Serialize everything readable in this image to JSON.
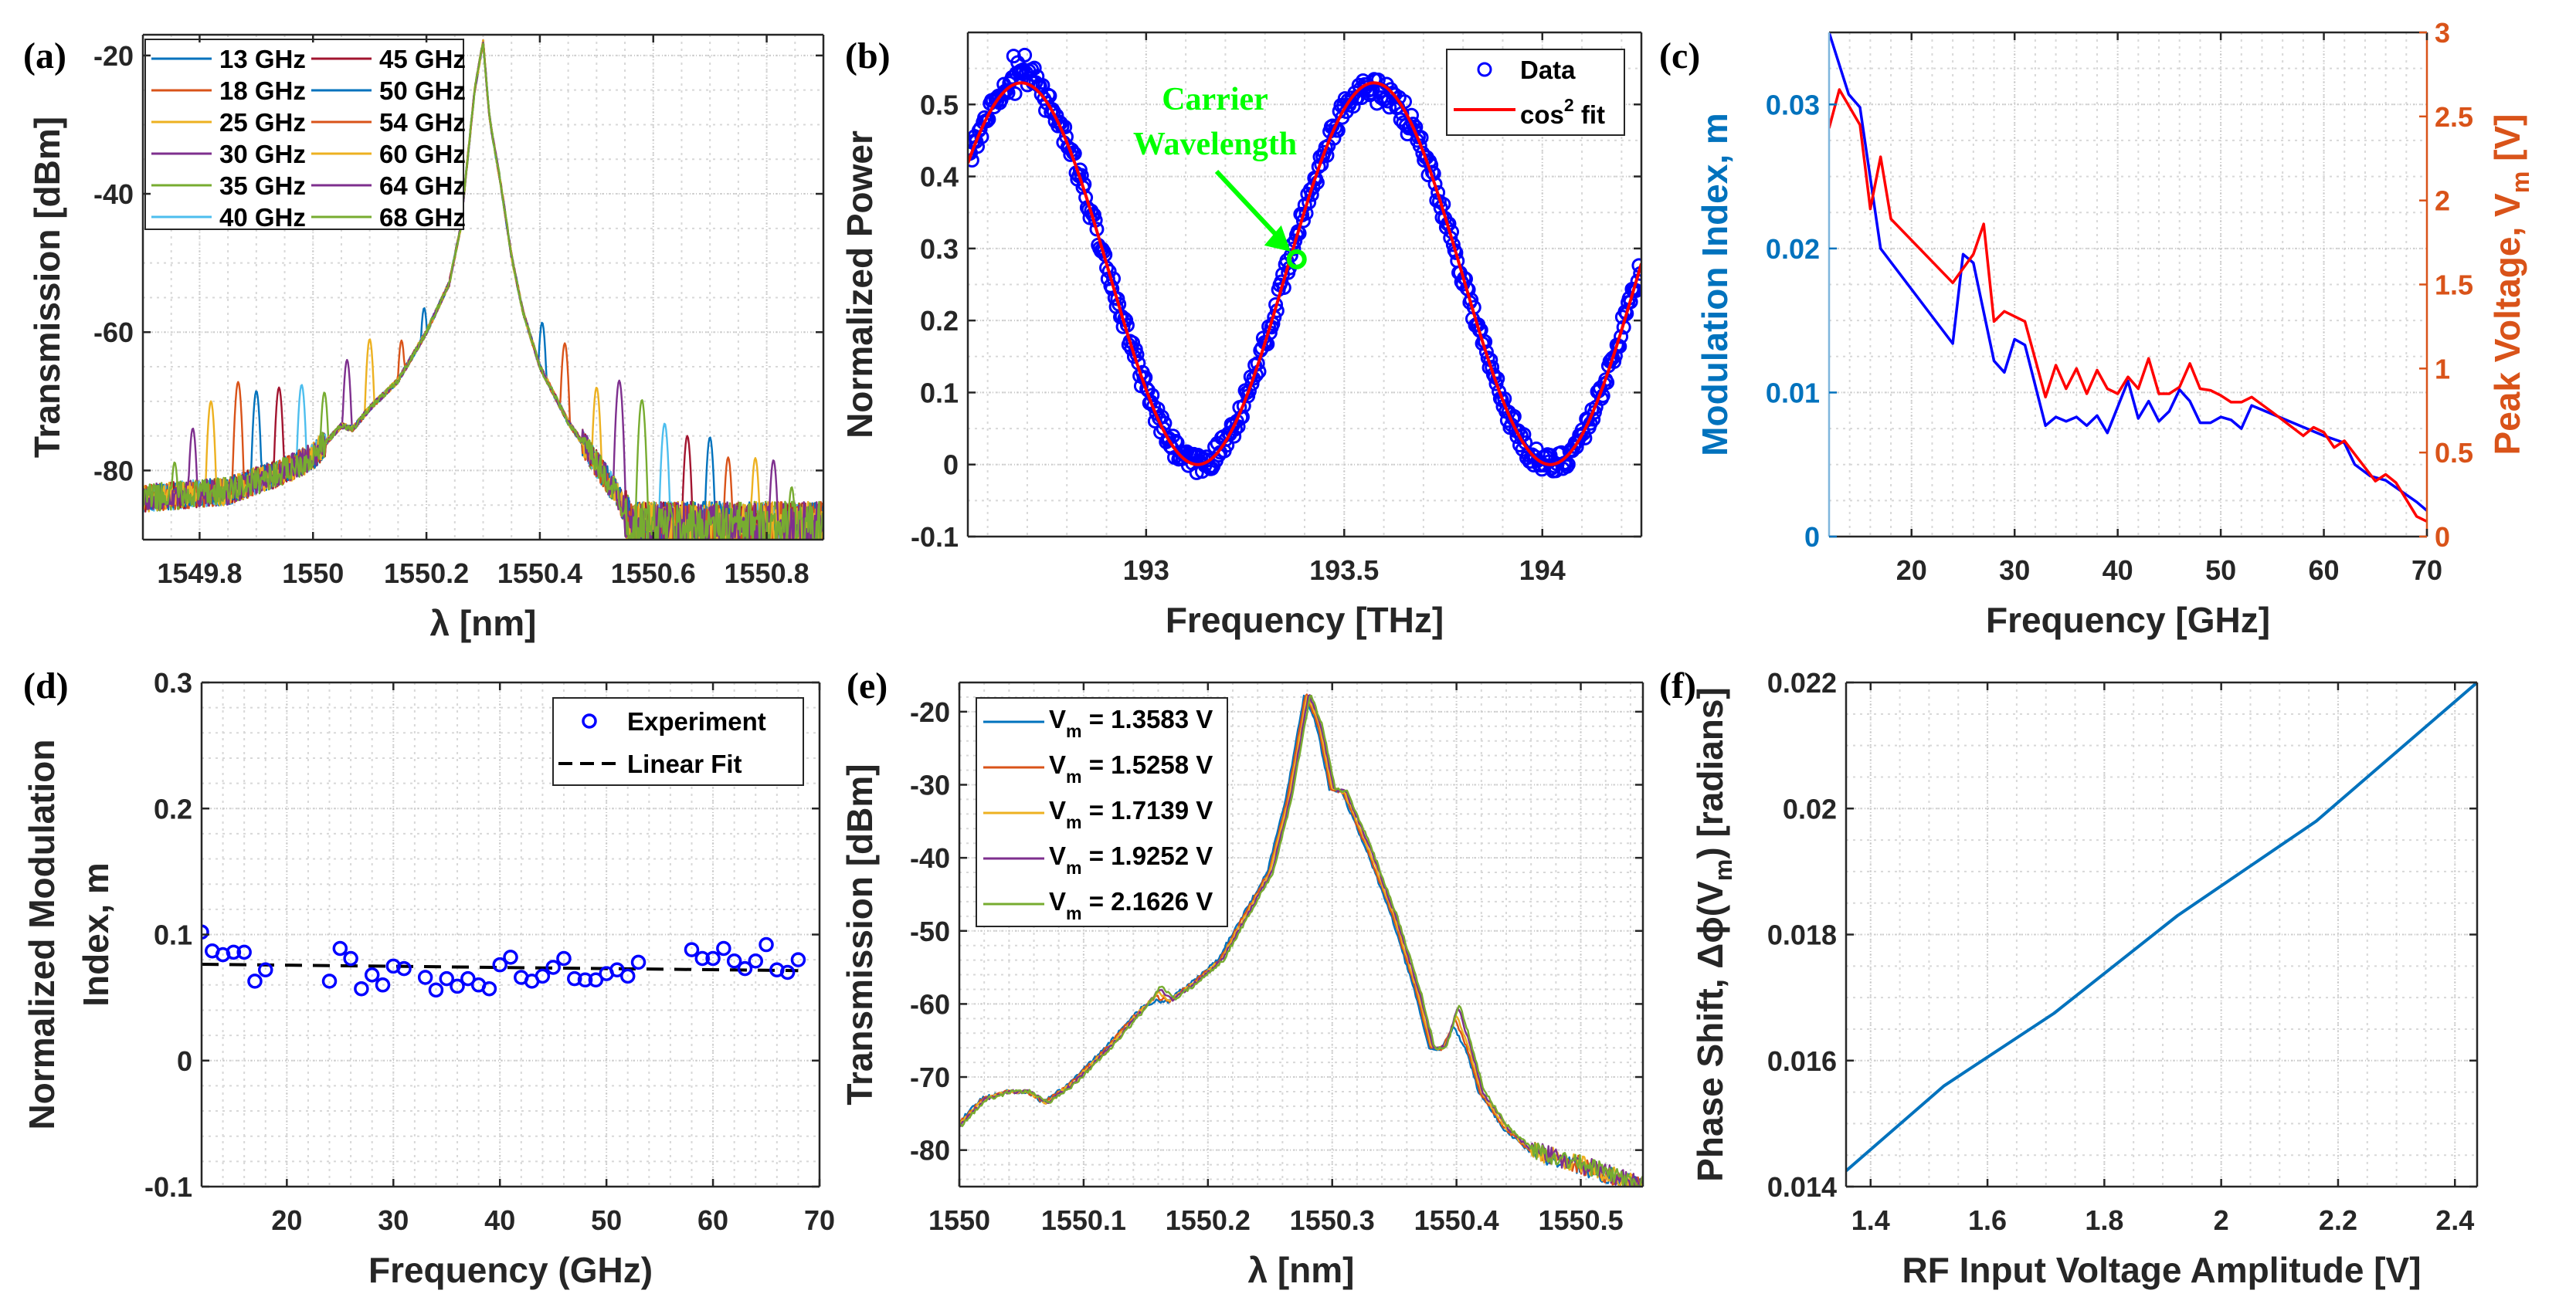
{
  "chart_data": [
    {
      "panel_label": "(a)",
      "type": "line",
      "title": "",
      "xlabel": "λ [nm]",
      "ylabel_lines": [
        [
          {
            "text": "Transmission [dBm]"
          }
        ]
      ],
      "xlim": [
        1549.7,
        1550.9
      ],
      "ylim": [
        -90,
        -17
      ],
      "xticks": [
        1549.8,
        1550,
        1550.2,
        1550.4,
        1550.6,
        1550.8
      ],
      "xtick_labels": [
        "1549.8",
        "1550",
        "1550.2",
        "1550.4",
        "1550.6",
        "1550.8"
      ],
      "yticks": [
        -80,
        -60,
        -40,
        -20
      ],
      "ytick_labels": [
        "-80",
        "-60",
        "-40",
        "-20"
      ],
      "grid": true,
      "legend_location": "top-left",
      "carrier_nm": 1550.3,
      "sideband_spacing_nm_per_GHz": 0.008,
      "envelope": {
        "x": [
          1549.7,
          1549.85,
          1549.95,
          1550.0,
          1550.05,
          1550.07,
          1550.1,
          1550.15,
          1550.2,
          1550.24,
          1550.26,
          1550.285,
          1550.3,
          1550.31,
          1550.315,
          1550.33,
          1550.35,
          1550.37,
          1550.4,
          1550.45,
          1550.5,
          1550.54,
          1550.56,
          1550.9
        ],
        "y": [
          -84,
          -83,
          -80,
          -78,
          -73.5,
          -74,
          -71,
          -67,
          -60,
          -53,
          -45,
          -25,
          -18,
          -28,
          -31,
          -38,
          -49,
          -57,
          -65,
          -73,
          -79,
          -84,
          -88,
          -88
        ]
      },
      "series": [
        {
          "name": "13 GHz",
          "color": "#0072BD",
          "freq_GHz": 13,
          "left_sideband_dBm": -56.5,
          "right_sideband_dBm": -58.6
        },
        {
          "name": "18 GHz",
          "color": "#D95319",
          "freq_GHz": 18,
          "left_sideband_dBm": -61.2,
          "right_sideband_dBm": -61.6
        },
        {
          "name": "25 GHz",
          "color": "#EDB120",
          "freq_GHz": 25,
          "left_sideband_dBm": -61.0,
          "right_sideband_dBm": -68.0
        },
        {
          "name": "30 GHz",
          "color": "#7E2F8E",
          "freq_GHz": 30,
          "left_sideband_dBm": -64.0,
          "right_sideband_dBm": -67.0
        },
        {
          "name": "35 GHz",
          "color": "#77AC30",
          "freq_GHz": 35,
          "left_sideband_dBm": -68.7,
          "right_sideband_dBm": -69.8
        },
        {
          "name": "40 GHz",
          "color": "#4DBEEE",
          "freq_GHz": 40,
          "left_sideband_dBm": -67.6,
          "right_sideband_dBm": -73.2
        },
        {
          "name": "45 GHz",
          "color": "#A2142F",
          "freq_GHz": 45,
          "left_sideband_dBm": -68.0,
          "right_sideband_dBm": -75.0
        },
        {
          "name": "50 GHz",
          "color": "#0072BD",
          "freq_GHz": 50,
          "left_sideband_dBm": -68.5,
          "right_sideband_dBm": -75.2
        },
        {
          "name": "54 GHz",
          "color": "#D95319",
          "freq_GHz": 54,
          "left_sideband_dBm": -67.2,
          "right_sideband_dBm": -78.1
        },
        {
          "name": "60 GHz",
          "color": "#EDB120",
          "freq_GHz": 60,
          "left_sideband_dBm": -70.0,
          "right_sideband_dBm": -78.2
        },
        {
          "name": "64 GHz",
          "color": "#7E2F8E",
          "freq_GHz": 64,
          "left_sideband_dBm": -73.9,
          "right_sideband_dBm": -78.5
        },
        {
          "name": "68 GHz",
          "color": "#77AC30",
          "freq_GHz": 68,
          "left_sideband_dBm": -78.8,
          "right_sideband_dBm": -82.4
        }
      ]
    },
    {
      "panel_label": "(b)",
      "type": "scatter",
      "title": "",
      "xlabel": "Frequency [THz]",
      "ylabel_lines": [
        [
          {
            "text": "Normalized Power"
          }
        ]
      ],
      "xlim": [
        192.55,
        194.25
      ],
      "ylim": [
        -0.1,
        0.6
      ],
      "xticks": [
        193,
        193.5,
        194
      ],
      "xtick_labels": [
        "193",
        "193.5",
        "194"
      ],
      "yticks": [
        -0.1,
        0,
        0.1,
        0.2,
        0.3,
        0.4,
        0.5
      ],
      "ytick_labels": [
        "-0.1",
        "0",
        "0.1",
        "0.2",
        "0.3",
        "0.4",
        "0.5"
      ],
      "grid": true,
      "legend_location": "top-right",
      "series": [
        {
          "name_segments": [
            {
              "text": "Data"
            }
          ],
          "type": "scatter",
          "color": "#0000FF"
        },
        {
          "name_segments": [
            {
              "text": "cos"
            },
            {
              "text": "2",
              "sup": true
            },
            {
              "text": " fit"
            }
          ],
          "type": "line",
          "color": "#FF0000"
        }
      ],
      "fit": {
        "amplitude": 0.53,
        "center_THz": 192.685,
        "period_THz": 0.89
      },
      "annotation": {
        "lines": [
          "Carrier",
          "Wavelength"
        ],
        "color": "#00FF00",
        "point": [
          193.38,
          0.285
        ]
      }
    },
    {
      "panel_label": "(c)",
      "type": "line",
      "title": "",
      "xlabel": "Frequency [GHz]",
      "ylabel_lines": [
        [
          {
            "text": "Modulation Index, m"
          }
        ]
      ],
      "ylabel_right": [
        {
          "text": "Peak Voltage, V"
        },
        {
          "text": "m",
          "sub": true
        },
        {
          "text": " [V]"
        }
      ],
      "left_axis_color": "#0072BD",
      "right_axis_color": "#D95319",
      "xlim": [
        12,
        70
      ],
      "ylim": [
        0,
        0.035
      ],
      "ylim_right": [
        0,
        3
      ],
      "xticks": [
        20,
        30,
        40,
        50,
        60,
        70
      ],
      "xtick_labels": [
        "20",
        "30",
        "40",
        "50",
        "60",
        "70"
      ],
      "yticks": [
        0,
        0.01,
        0.02,
        0.03
      ],
      "ytick_labels": [
        "0",
        "0.01",
        "0.02",
        "0.03"
      ],
      "yticks_right": [
        0,
        0.5,
        1,
        1.5,
        2,
        2.5,
        3
      ],
      "ytick_labels_right": [
        "0",
        "0.5",
        "1",
        "1.5",
        "2",
        "2.5",
        "3"
      ],
      "grid": true,
      "series": [
        {
          "name": "Modulation Index, m",
          "axis": "left",
          "color": "#0000FF",
          "x": [
            12,
            13.9,
            15,
            17,
            24,
            25,
            26,
            28,
            29,
            30,
            31,
            33,
            34,
            35,
            36,
            37,
            38,
            39,
            41,
            42,
            43,
            44,
            45,
            46,
            47,
            48,
            49,
            50,
            51,
            52,
            53,
            58,
            60,
            62,
            63,
            64.5,
            66,
            69,
            70
          ],
          "y": [
            0.035,
            0.0307,
            0.0298,
            0.02,
            0.0134,
            0.0196,
            0.019,
            0.0122,
            0.0114,
            0.0137,
            0.0133,
            0.0077,
            0.0083,
            0.008,
            0.0083,
            0.0077,
            0.0084,
            0.0072,
            0.0108,
            0.0082,
            0.0094,
            0.008,
            0.0087,
            0.0102,
            0.0094,
            0.0079,
            0.0079,
            0.0083,
            0.0081,
            0.0075,
            0.0091,
            0.0076,
            0.007,
            0.0065,
            0.005,
            0.0042,
            0.0039,
            0.0024,
            0.0018
          ]
        },
        {
          "name": "Peak Voltage, Vm",
          "axis": "right",
          "color": "#FF0000",
          "x": [
            12,
            13,
            15,
            16,
            17,
            18,
            24,
            26,
            27,
            28,
            29,
            31,
            33,
            34,
            35,
            36,
            37,
            38,
            39,
            40,
            41,
            42,
            43,
            44,
            45,
            46,
            47,
            48,
            49,
            50,
            51,
            52,
            53,
            55,
            58,
            59,
            60,
            61,
            62,
            65,
            66,
            67,
            69,
            70
          ],
          "y": [
            2.43,
            2.66,
            2.45,
            1.95,
            2.26,
            1.89,
            1.51,
            1.68,
            1.86,
            1.28,
            1.34,
            1.28,
            0.83,
            1.02,
            0.88,
            1.0,
            0.85,
            0.99,
            0.88,
            0.85,
            0.95,
            0.88,
            1.06,
            0.85,
            0.85,
            0.89,
            1.03,
            0.88,
            0.87,
            0.84,
            0.8,
            0.8,
            0.83,
            0.74,
            0.6,
            0.65,
            0.62,
            0.53,
            0.57,
            0.33,
            0.37,
            0.32,
            0.12,
            0.09
          ]
        }
      ]
    },
    {
      "panel_label": "(d)",
      "type": "scatter",
      "title": "",
      "xlabel": "Frequency (GHz)",
      "ylabel_lines": [
        [
          {
            "text": "Normalized Modulation"
          }
        ],
        [
          {
            "text": "Index, m"
          }
        ]
      ],
      "xlim": [
        12,
        70
      ],
      "ylim": [
        -0.1,
        0.3
      ],
      "xticks": [
        20,
        30,
        40,
        50,
        60,
        70
      ],
      "xtick_labels": [
        "20",
        "30",
        "40",
        "50",
        "60",
        "70"
      ],
      "yticks": [
        -0.1,
        0,
        0.1,
        0.2,
        0.3
      ],
      "ytick_labels": [
        "-0.1",
        "0",
        "0.1",
        "0.2",
        "0.3"
      ],
      "grid": true,
      "legend_location": "top-right",
      "series": [
        {
          "name": "Experiment",
          "type": "scatter",
          "color": "#0000FF",
          "x": [
            12,
            13,
            14,
            15,
            16,
            17,
            18,
            24,
            25,
            26,
            27,
            28,
            29,
            30,
            31,
            33,
            34,
            35,
            36,
            37,
            38,
            39,
            40,
            41,
            42,
            43,
            44,
            45,
            46,
            47,
            48,
            49,
            50,
            51,
            52,
            53,
            58,
            59,
            60,
            61,
            62,
            63,
            64,
            65,
            66,
            67,
            68
          ],
          "y": [
            0.102,
            0.087,
            0.084,
            0.086,
            0.086,
            0.063,
            0.072,
            0.063,
            0.089,
            0.081,
            0.057,
            0.068,
            0.06,
            0.075,
            0.073,
            0.066,
            0.056,
            0.065,
            0.059,
            0.065,
            0.06,
            0.057,
            0.076,
            0.082,
            0.066,
            0.063,
            0.067,
            0.074,
            0.081,
            0.065,
            0.064,
            0.064,
            0.069,
            0.072,
            0.067,
            0.078,
            0.088,
            0.081,
            0.081,
            0.089,
            0.079,
            0.073,
            0.079,
            0.092,
            0.072,
            0.07,
            0.08
          ]
        },
        {
          "name": "Linear Fit",
          "type": "line",
          "color": "#000000",
          "slope": -9e-05,
          "intercept": 0.0775
        }
      ]
    },
    {
      "panel_label": "(e)",
      "type": "line",
      "title": "",
      "xlabel": "λ [nm]",
      "ylabel_lines": [
        [
          {
            "text": "Transmission [dBm]"
          }
        ]
      ],
      "xlim": [
        1550,
        1550.55
      ],
      "ylim": [
        -85,
        -16
      ],
      "xticks": [
        1550,
        1550.1,
        1550.2,
        1550.3,
        1550.4,
        1550.5
      ],
      "xtick_labels": [
        "1550",
        "1550.1",
        "1550.2",
        "1550.3",
        "1550.4",
        "1550.5"
      ],
      "yticks": [
        -80,
        -70,
        -60,
        -50,
        -40,
        -30,
        -20
      ],
      "ytick_labels": [
        "-80",
        "-70",
        "-60",
        "-50",
        "-40",
        "-30",
        "-20"
      ],
      "grid": true,
      "legend_location": "top-left",
      "base_curve": {
        "x": [
          1550,
          1550.02,
          1550.04,
          1550.055,
          1550.07,
          1550.09,
          1550.12,
          1550.14,
          1550.16,
          1550.17,
          1550.19,
          1550.21,
          1550.23,
          1550.25,
          1550.265,
          1550.28,
          1550.29,
          1550.3,
          1550.31,
          1550.33,
          1550.35,
          1550.37,
          1550.38,
          1550.39,
          1550.4,
          1550.41,
          1550.42,
          1550.44,
          1550.46,
          1550.5,
          1550.55
        ],
        "y": [
          -76.5,
          -73,
          -72,
          -72,
          -73.5,
          -71,
          -66,
          -62,
          -58.5,
          -59.5,
          -57,
          -54,
          -48,
          -42,
          -32,
          -17.5,
          -22,
          -30.5,
          -31,
          -39,
          -48,
          -59,
          -66,
          -66,
          -61.5,
          -66,
          -72,
          -77,
          -80,
          -82,
          -85
        ]
      },
      "series": [
        {
          "name_segments": [
            {
              "text": "V"
            },
            {
              "text": "m",
              "sub": true
            },
            {
              "text": " = 1.3583 V"
            }
          ],
          "color": "#0072BD",
          "shoulder_peak_dBm": -59.5,
          "sideband_peak_dBm": -63.0
        },
        {
          "name_segments": [
            {
              "text": "V"
            },
            {
              "text": "m",
              "sub": true
            },
            {
              "text": " = 1.5258 V"
            }
          ],
          "color": "#D95319",
          "shoulder_peak_dBm": -59.0,
          "sideband_peak_dBm": -62.0
        },
        {
          "name_segments": [
            {
              "text": "V"
            },
            {
              "text": "m",
              "sub": true
            },
            {
              "text": " = 1.7139 V"
            }
          ],
          "color": "#EDB120",
          "shoulder_peak_dBm": -58.5,
          "sideband_peak_dBm": -61.5
        },
        {
          "name_segments": [
            {
              "text": "V"
            },
            {
              "text": "m",
              "sub": true
            },
            {
              "text": " = 1.9252 V"
            }
          ],
          "color": "#7E2F8E",
          "shoulder_peak_dBm": -58.0,
          "sideband_peak_dBm": -60.5
        },
        {
          "name_segments": [
            {
              "text": "V"
            },
            {
              "text": "m",
              "sub": true
            },
            {
              "text": " = 2.1626 V"
            }
          ],
          "color": "#77AC30",
          "shoulder_peak_dBm": -57.5,
          "sideband_peak_dBm": -60.0
        }
      ]
    },
    {
      "panel_label": "(f)",
      "type": "line",
      "title": "",
      "xlabel": "RF Input Voltage Amplitude [V]",
      "ylabel_lines": [
        [
          {
            "text": "Phase Shift,  Δϕ(V"
          },
          {
            "text": "m",
            "sub": true
          },
          {
            "text": ") [radians]"
          }
        ]
      ],
      "xlim": [
        1.358,
        2.438
      ],
      "ylim": [
        0.014,
        0.022
      ],
      "xticks": [
        1.4,
        1.6,
        1.8,
        2,
        2.2,
        2.4
      ],
      "xtick_labels": [
        "1.4",
        "1.6",
        "1.8",
        "2",
        "2.2",
        "2.4"
      ],
      "yticks": [
        0.014,
        0.016,
        0.018,
        0.02,
        0.022
      ],
      "ytick_labels": [
        "0.014",
        "0.016",
        "0.018",
        "0.02",
        "0.022"
      ],
      "grid": true,
      "series": [
        {
          "name": "Phase shift",
          "color": "#0072BD",
          "x": [
            1.358,
            1.5258,
            1.7139,
            1.9252,
            2.1626,
            2.438
          ],
          "y": [
            0.01425,
            0.0156,
            0.01675,
            0.0183,
            0.0198,
            0.022
          ]
        }
      ]
    }
  ]
}
